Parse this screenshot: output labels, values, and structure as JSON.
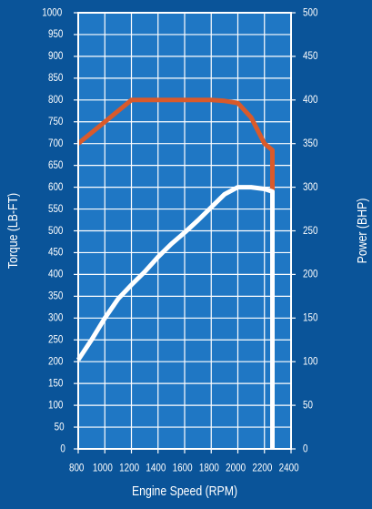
{
  "chart_data": {
    "type": "line",
    "title": "",
    "xlabel": "Engine Speed (RPM)",
    "ylabel_left": "Torque (LB-FT)",
    "ylabel_right": "Power (BHP)",
    "xlim": [
      800,
      2400
    ],
    "ylim_left": [
      0,
      1000
    ],
    "ylim_right": [
      0,
      500
    ],
    "x_ticks": [
      "800",
      "1000",
      "1200",
      "1400",
      "1600",
      "1800",
      "2000",
      "2200",
      "2400"
    ],
    "y_left_ticks": [
      "0",
      "50",
      "100",
      "150",
      "200",
      "250",
      "300",
      "350",
      "400",
      "450",
      "500",
      "550",
      "600",
      "650",
      "700",
      "750",
      "800",
      "850",
      "900",
      "950",
      "1000"
    ],
    "y_right_ticks": [
      "0",
      "50",
      "100",
      "150",
      "200",
      "250",
      "300",
      "350",
      "400",
      "450",
      "500"
    ],
    "grid": true,
    "legend": "none",
    "series": [
      {
        "axis": "left",
        "color": "#d95a2b",
        "x": [
          800,
          1000,
          1200,
          1400,
          1600,
          1800,
          1900,
          2000,
          2100,
          2200,
          2260,
          2260
        ],
        "y": [
          700,
          750,
          800,
          800,
          800,
          800,
          798,
          793,
          760,
          700,
          685,
          585
        ]
      },
      {
        "axis": "right",
        "color": "#ffffff",
        "x": [
          800,
          900,
          1000,
          1100,
          1200,
          1300,
          1400,
          1500,
          1600,
          1700,
          1800,
          1900,
          2000,
          2100,
          2200,
          2260,
          2260
        ],
        "y": [
          102,
          125,
          150,
          172,
          188,
          203,
          220,
          235,
          248,
          262,
          277,
          292,
          300,
          300,
          298,
          295,
          0
        ]
      }
    ],
    "colors": {
      "background": "#0a5499",
      "plot_background": "#1f77c4",
      "grid": "#ffffff",
      "text": "#ffffff"
    }
  }
}
